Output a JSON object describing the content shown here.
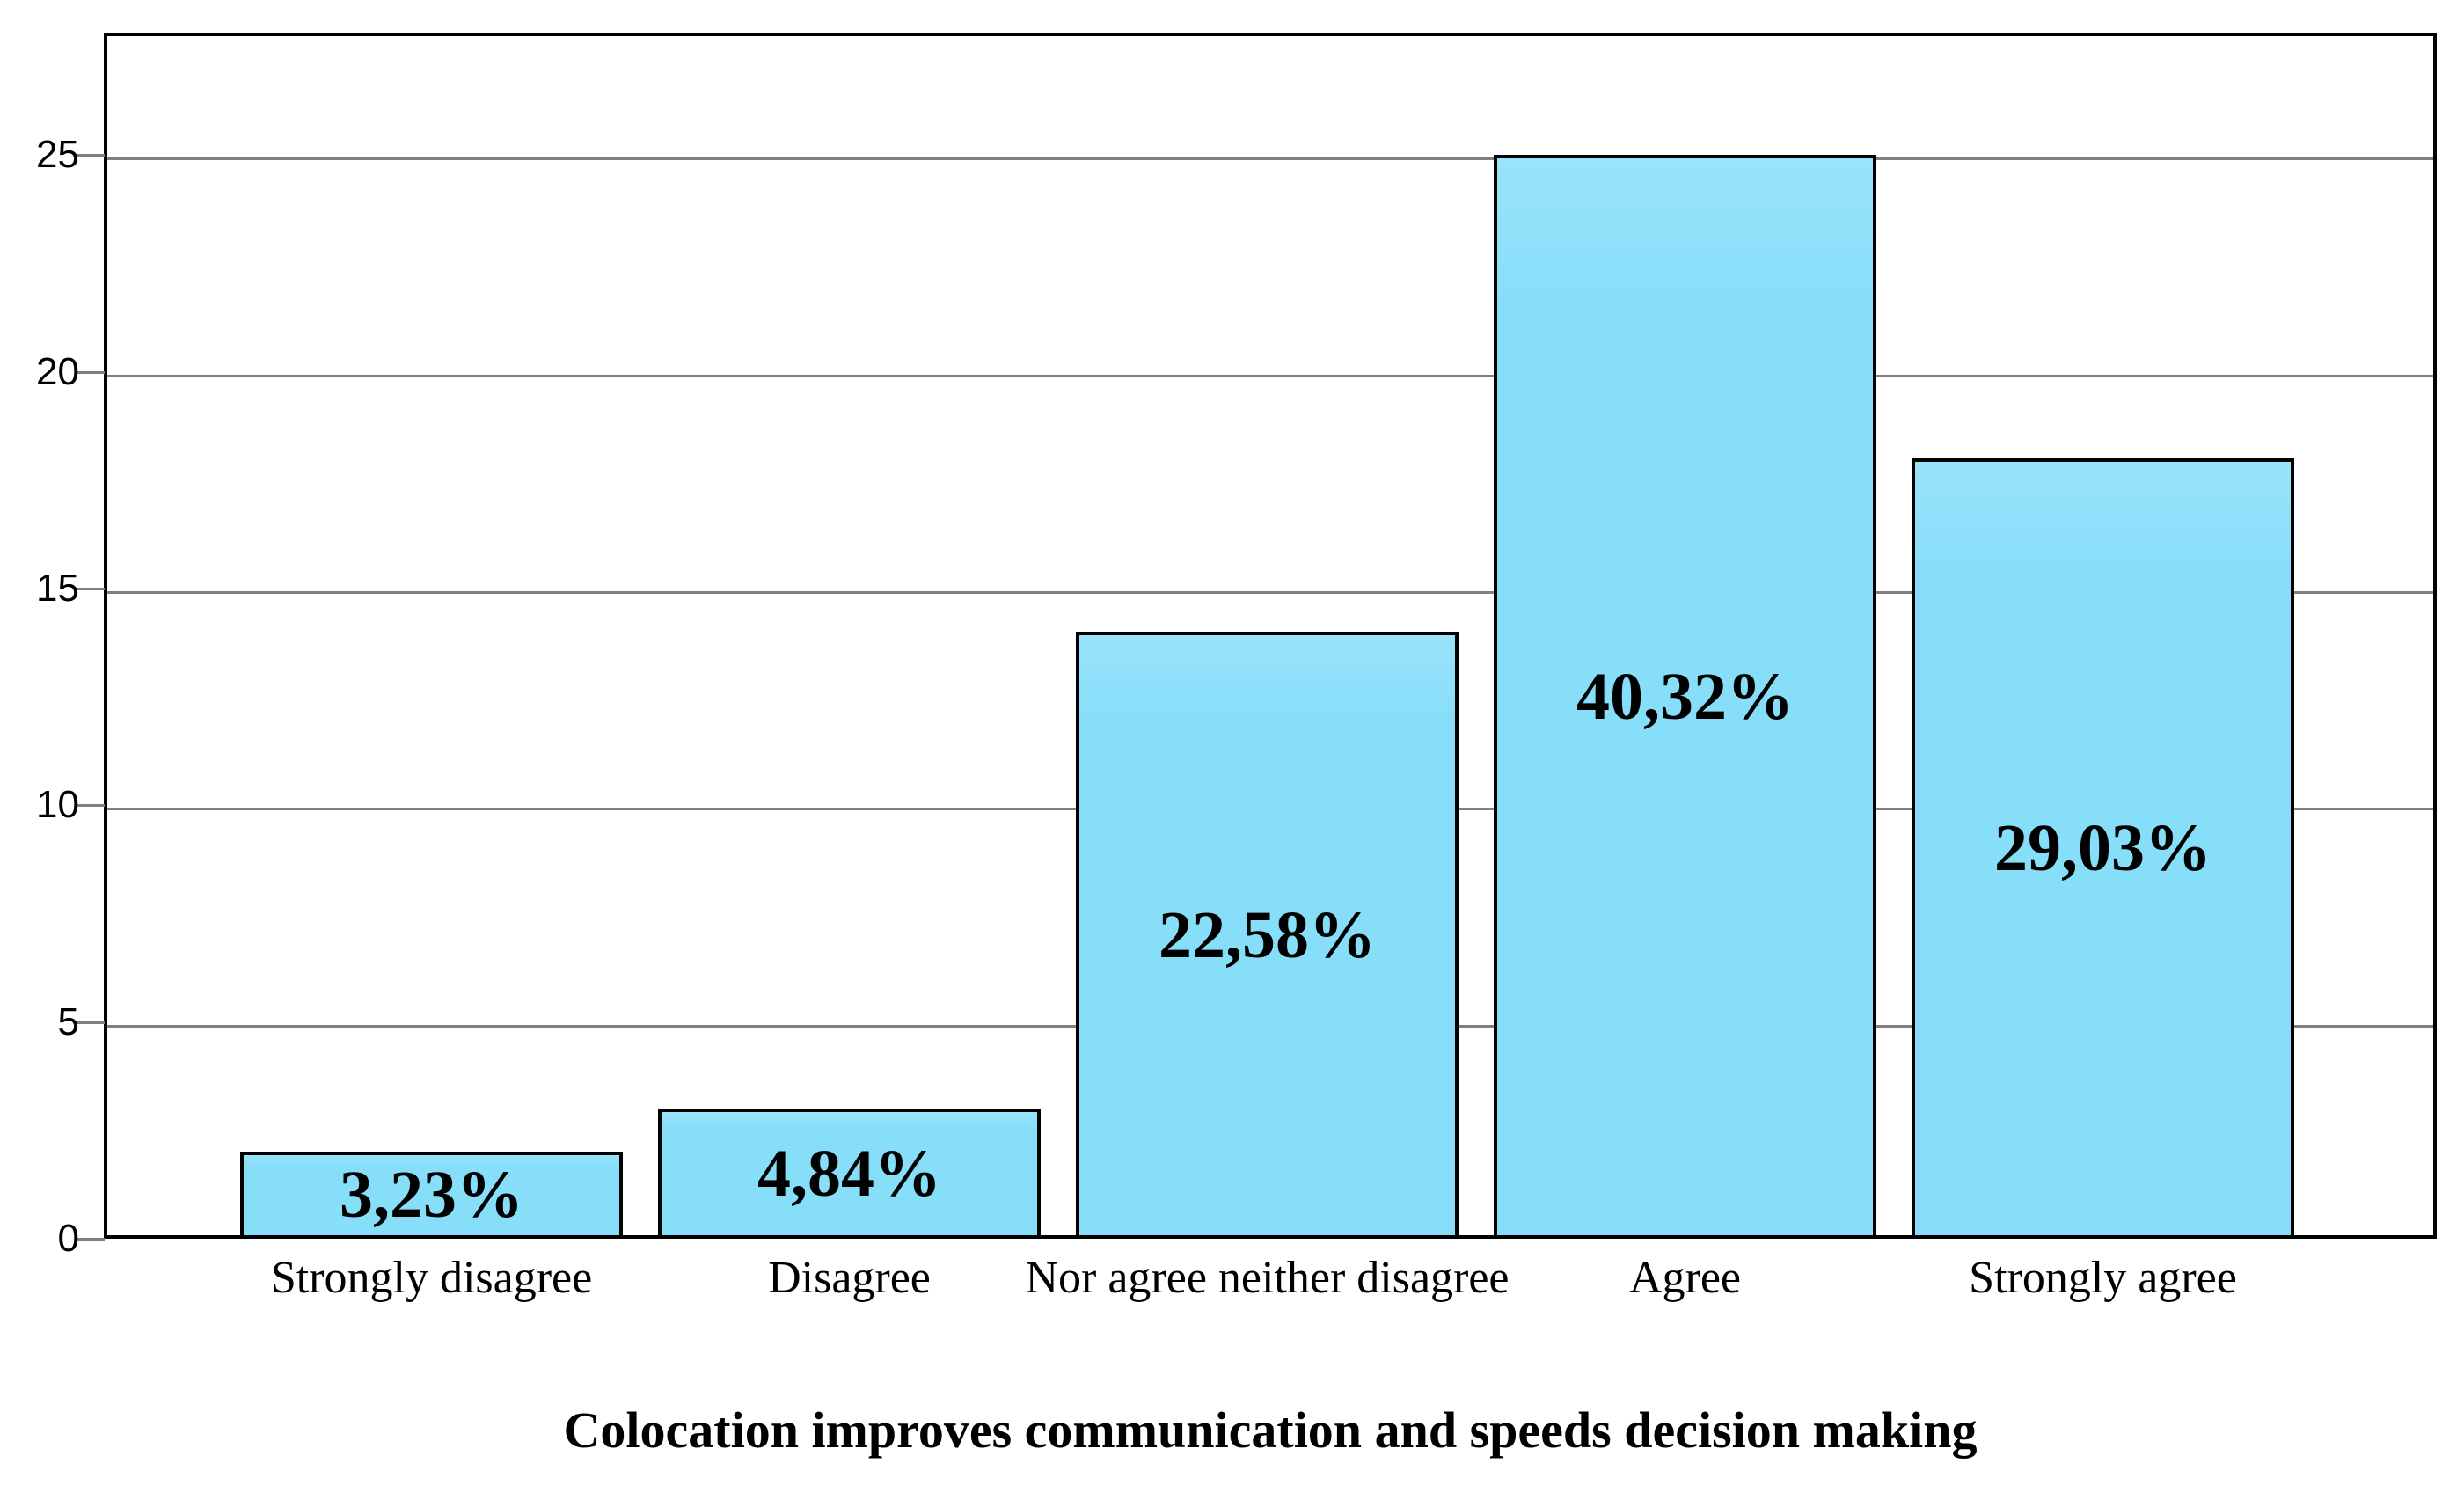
{
  "chart_data": {
    "type": "bar",
    "title": "Colocation improves communication and speeds decision making",
    "categories": [
      "Strongly disagree",
      "Disagree",
      "Nor agree neither disagree",
      "Agree",
      "Strongly agree"
    ],
    "values": [
      2,
      3,
      14,
      25,
      18
    ],
    "bar_labels": [
      "3,23%",
      "4,84%",
      "22,58%",
      "40,32%",
      "29,03%"
    ],
    "yticks": [
      0,
      5,
      10,
      15,
      20,
      25
    ],
    "ylim": [
      0,
      27.83
    ],
    "xlabel": "",
    "ylabel": "",
    "grid": true,
    "legend_position": "none",
    "colors": {
      "bar_fill": "#87DEF9",
      "bar_fill_light": "#9AE3FA",
      "bar_border": "#000000",
      "gridline": "#808080",
      "axis": "#000000",
      "background": "#FFFFFF",
      "text": "#000000"
    }
  }
}
